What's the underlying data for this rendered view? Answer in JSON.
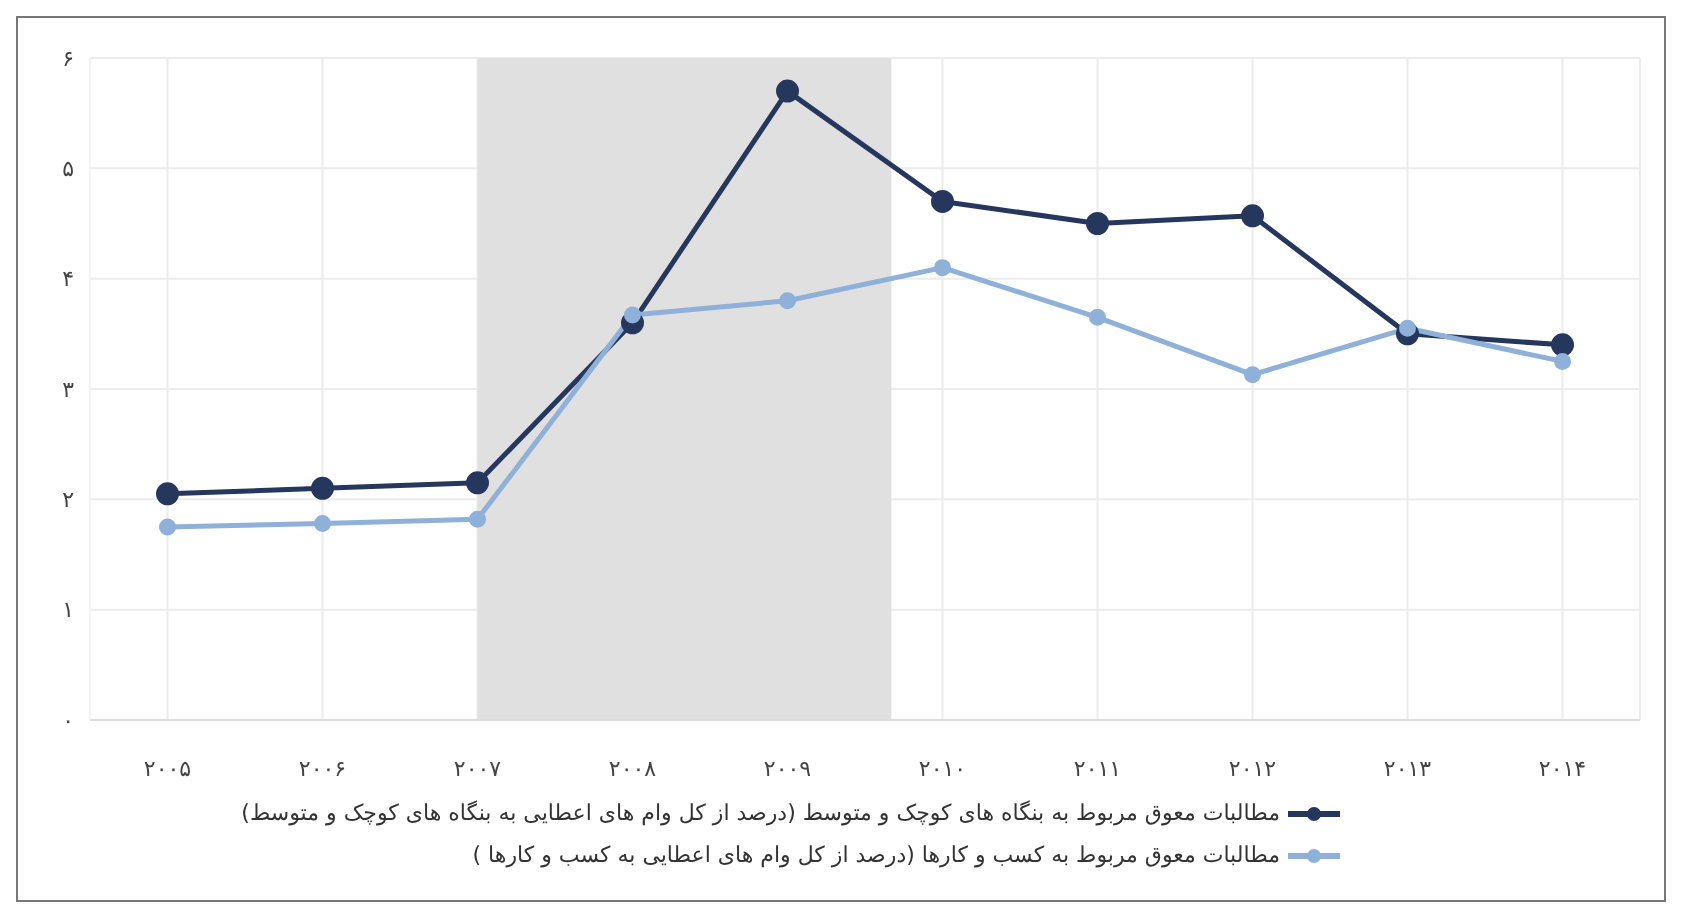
{
  "chart_data": {
    "type": "line",
    "x": [
      2005,
      2006,
      2007,
      2008,
      2009,
      2010,
      2011,
      2012,
      2013,
      2014
    ],
    "xlim": [
      2004.5,
      2014.5
    ],
    "xticks": [
      {
        "value": 2005,
        "label": "۲۰۰۵"
      },
      {
        "value": 2006,
        "label": "۲۰۰۶"
      },
      {
        "value": 2007,
        "label": "۲۰۰۷"
      },
      {
        "value": 2008,
        "label": "۲۰۰۸"
      },
      {
        "value": 2009,
        "label": "۲۰۰۹"
      },
      {
        "value": 2010,
        "label": "۲۰۱۰"
      },
      {
        "value": 2011,
        "label": "۲۰۱۱"
      },
      {
        "value": 2012,
        "label": "۲۰۱۲"
      },
      {
        "value": 2013,
        "label": "۲۰۱۳"
      },
      {
        "value": 2014,
        "label": "۲۰۱۴"
      }
    ],
    "ylim": [
      0,
      6
    ],
    "yticks": [
      {
        "value": 0,
        "label": "۰"
      },
      {
        "value": 1,
        "label": "۱"
      },
      {
        "value": 2,
        "label": "۲"
      },
      {
        "value": 3,
        "label": "۳"
      },
      {
        "value": 4,
        "label": "۴"
      },
      {
        "value": 5,
        "label": "۵"
      },
      {
        "value": 6,
        "label": "۶"
      }
    ],
    "series": [
      {
        "name": "مطالبات معوق مربوط به بنگاه های کوچک و متوسط (درصد از کل وام های اعطایی به بنگاه های کوچک و متوسط)",
        "color": "#26375e",
        "values": [
          2.05,
          2.1,
          2.15,
          3.6,
          5.7,
          4.7,
          4.5,
          4.57,
          3.5,
          3.4
        ]
      },
      {
        "name": "مطالبات معوق مربوط به کسب و کارها (درصد از کل وام های اعطایی به کسب و کارها )",
        "color": "#8fb0d8",
        "values": [
          1.75,
          1.78,
          1.82,
          3.67,
          3.8,
          4.1,
          3.65,
          3.13,
          3.55,
          3.25
        ]
      }
    ],
    "bands": [
      {
        "axis": "x",
        "from": 2007,
        "to": 2009.67,
        "color": "#e0e0e0"
      }
    ],
    "grid": true,
    "legend": "bottom",
    "marker": "circle",
    "line_style": "solid"
  }
}
